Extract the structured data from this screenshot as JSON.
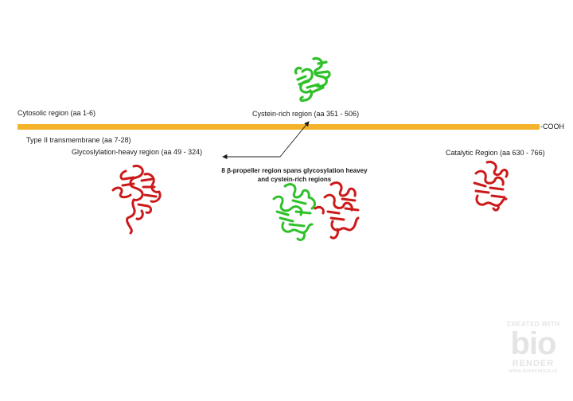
{
  "labels": {
    "cytosolic": "Cytosolic region (aa 1-6)",
    "cysteine_rich": "Cystein-rich region (aa 351 - 506)",
    "cooh": "-COOH",
    "transmembrane": "Type II transmembrane (aa 7-28)",
    "glycosylation": "Glycoslylation-heavy region (aa 49 - 324)",
    "propeller": "8 β-propeller region spans glycosylation heavey and cystein-rich regions",
    "catalytic": "Catalytic Region (aa 630 - 766)"
  },
  "watermark": {
    "created_with": "CREATED WITH",
    "logo": "bio",
    "render": "RENDER",
    "url": "WWW.BIORENDER.IO"
  },
  "colors": {
    "bar": "#f4b32a",
    "green_protein": "#2fc02a",
    "red_protein": "#cc1a1a",
    "arrow": "#1a1a1a"
  },
  "icons": {
    "green_structure": "protein-ribbon-green-icon",
    "red_structure": "protein-ribbon-red-icon"
  }
}
